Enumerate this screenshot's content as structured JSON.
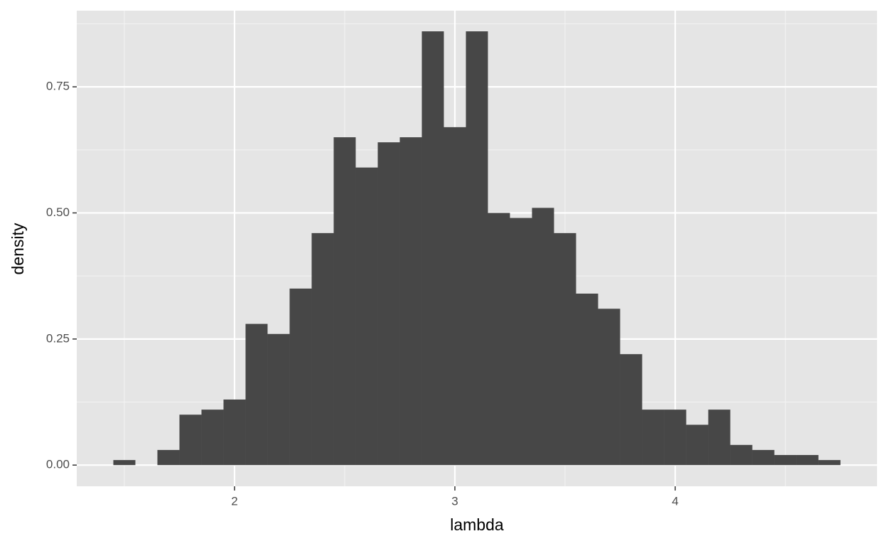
{
  "chart_data": {
    "type": "histogram",
    "x_label": "lambda",
    "y_label": "density",
    "bins": [
      1.45,
      1.55,
      1.65,
      1.75,
      1.85,
      1.95,
      2.05,
      2.15,
      2.25,
      2.35,
      2.45,
      2.55,
      2.65,
      2.75,
      2.85,
      2.95,
      3.05,
      3.15,
      3.25,
      3.35,
      3.45,
      3.55,
      3.65,
      3.75,
      3.85,
      3.95,
      4.05,
      4.15,
      4.25,
      4.35,
      4.45,
      4.55,
      4.65,
      4.75
    ],
    "values": [
      0.01,
      0,
      0.03,
      0.1,
      0.11,
      0.13,
      0.28,
      0.26,
      0.35,
      0.46,
      0.65,
      0.59,
      0.64,
      0.65,
      0.86,
      0.67,
      0.86,
      0.5,
      0.49,
      0.51,
      0.46,
      0.34,
      0.31,
      0.22,
      0.11,
      0.11,
      0.08,
      0.11,
      0.04,
      0.03,
      0.02,
      0.02,
      0.01
    ],
    "color": "#474747",
    "xlim": [
      1.284,
      4.916
    ],
    "ylim": [
      -0.042,
      0.901
    ],
    "xticks": [
      2,
      3,
      4
    ],
    "yticks": [
      {
        "value": 0,
        "label": "0.00"
      },
      0.25,
      {
        "value": 0.5,
        "label": "0.50"
      },
      0.75
    ],
    "grid": true
  }
}
